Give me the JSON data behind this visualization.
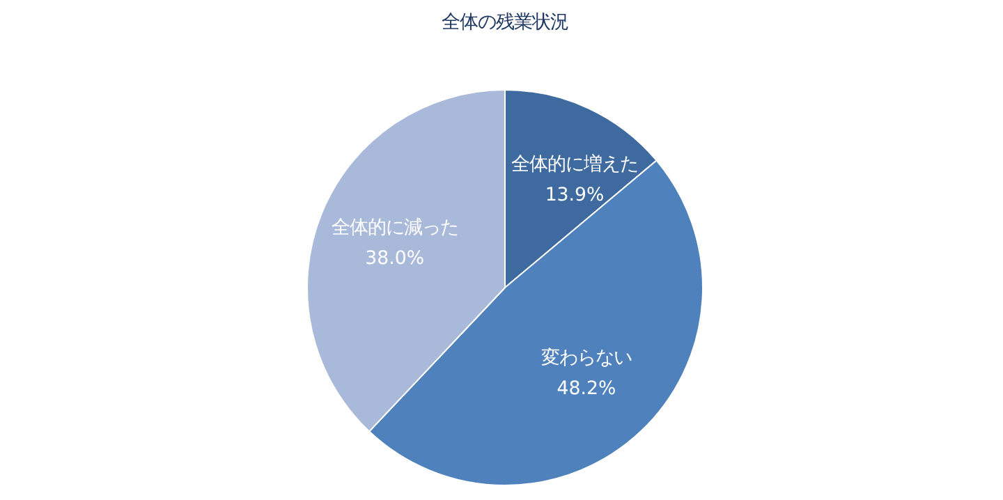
{
  "chart_data": {
    "type": "pie",
    "title": "全体の残業状況",
    "categories": [
      "全体的に増えた",
      "変わらない",
      "全体的に減った"
    ],
    "values": [
      13.9,
      48.2,
      38.0
    ],
    "value_labels": [
      "13.9%",
      "48.2%",
      "38.0%"
    ],
    "colors": [
      "#3f6a9f",
      "#4f81bd",
      "#a9b9d9"
    ],
    "legend": false
  }
}
